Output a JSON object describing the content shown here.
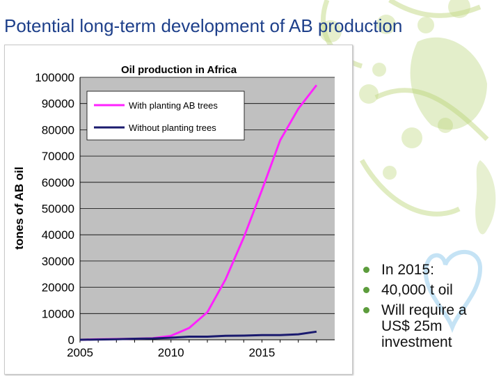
{
  "slide": {
    "title": "Potential long-term development of AB production"
  },
  "bullets": [
    {
      "text": "In 2015:"
    },
    {
      "text": "40,000 t oil"
    },
    {
      "text": "Will require a US$ 25m investment"
    }
  ],
  "colors": {
    "title": "#1d3f8a",
    "bullet": "#5c9c3c",
    "plot_bg": "#c0c0c0",
    "with_planting": "#ff22ff",
    "without_planting": "#1a1a6e"
  },
  "chart_data": {
    "type": "line",
    "title": "Oil production in Africa",
    "xlabel": "",
    "ylabel": "tones of AB oil",
    "xlim": [
      2005,
      2019
    ],
    "ylim": [
      0,
      100000
    ],
    "x_ticks": [
      2005,
      2010,
      2015
    ],
    "y_ticks": [
      0,
      10000,
      20000,
      30000,
      40000,
      50000,
      60000,
      70000,
      80000,
      90000,
      100000
    ],
    "x_tick_labels": [
      "2005",
      "2010",
      "2015"
    ],
    "y_tick_labels": [
      "0",
      "10000",
      "20000",
      "30000",
      "40000",
      "50000",
      "60000",
      "70000",
      "80000",
      "90000",
      "100000"
    ],
    "legend_position": "top-left",
    "grid": true,
    "x": [
      2005,
      2006,
      2007,
      2008,
      2009,
      2010,
      2011,
      2012,
      2013,
      2014,
      2015,
      2016,
      2017,
      2018
    ],
    "series": [
      {
        "name": "With planting AB trees",
        "color": "#ff22ff",
        "values": [
          0,
          200,
          300,
          400,
          600,
          1500,
          4500,
          10500,
          23000,
          39000,
          57000,
          76000,
          88000,
          97000
        ]
      },
      {
        "name": "Without planting trees",
        "color": "#1a1a6e",
        "values": [
          0,
          100,
          200,
          400,
          500,
          800,
          1200,
          1200,
          1500,
          1600,
          1800,
          1800,
          2100,
          3100
        ]
      }
    ]
  }
}
